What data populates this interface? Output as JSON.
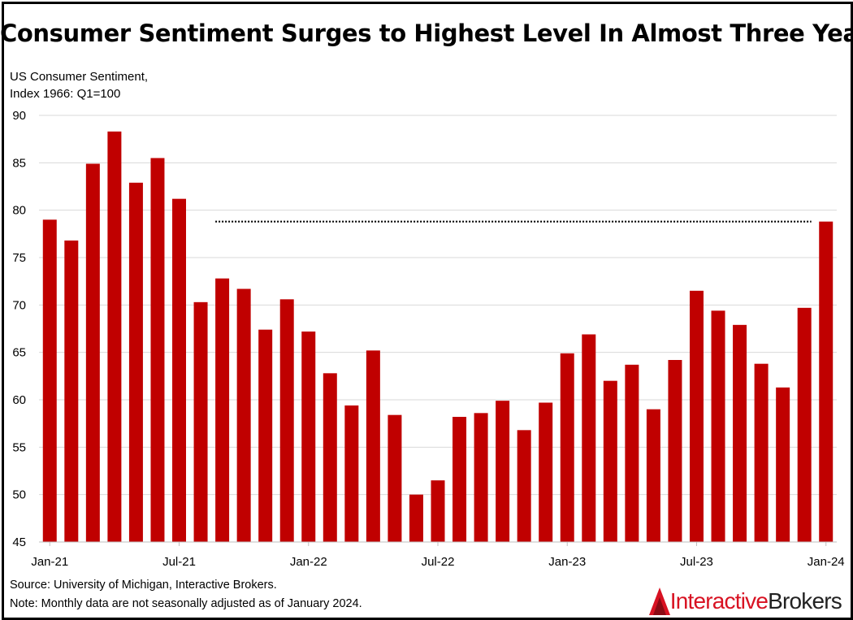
{
  "title": "Consumer Sentiment Surges to Highest Level In Almost Three Years",
  "source": "Source: University of Michigan, Interactive Brokers.",
  "note": "Note: Monthly data are not seasonally adjusted as of January 2024.",
  "logo": {
    "part1": "Interactive",
    "part2": "Brokers"
  },
  "chart_data": {
    "type": "bar",
    "ylabel_lines": [
      "US Consumer Sentiment,",
      "Index 1966: Q1=100"
    ],
    "ylim": [
      45,
      90
    ],
    "yticks": [
      45,
      50,
      55,
      60,
      65,
      70,
      75,
      80,
      85,
      90
    ],
    "grid": true,
    "bar_color": "#c00000",
    "categories": [
      "Jan-21",
      "Feb-21",
      "Mar-21",
      "Apr-21",
      "May-21",
      "Jun-21",
      "Jul-21",
      "Aug-21",
      "Sep-21",
      "Oct-21",
      "Nov-21",
      "Dec-21",
      "Jan-22",
      "Feb-22",
      "Mar-22",
      "Apr-22",
      "May-22",
      "Jun-22",
      "Jul-22",
      "Aug-22",
      "Sep-22",
      "Oct-22",
      "Nov-22",
      "Dec-22",
      "Jan-23",
      "Feb-23",
      "Mar-23",
      "Apr-23",
      "May-23",
      "Jun-23",
      "Jul-23",
      "Aug-23",
      "Sep-23",
      "Oct-23",
      "Nov-23",
      "Dec-23",
      "Jan-24"
    ],
    "values": [
      79.0,
      76.8,
      84.9,
      88.3,
      82.9,
      85.5,
      81.2,
      70.3,
      72.8,
      71.7,
      67.4,
      70.6,
      67.2,
      62.8,
      59.4,
      65.2,
      58.4,
      50.0,
      51.5,
      58.2,
      58.6,
      59.9,
      56.8,
      59.7,
      64.9,
      66.9,
      62.0,
      63.7,
      59.0,
      64.2,
      71.5,
      69.4,
      67.9,
      63.8,
      61.3,
      69.7,
      78.8
    ],
    "x_tick_labels": [
      {
        "index": 0,
        "label": "Jan-21"
      },
      {
        "index": 6,
        "label": "Jul-21"
      },
      {
        "index": 12,
        "label": "Jan-22"
      },
      {
        "index": 18,
        "label": "Jul-22"
      },
      {
        "index": 24,
        "label": "Jan-23"
      },
      {
        "index": 30,
        "label": "Jul-23"
      },
      {
        "index": 36,
        "label": "Jan-24"
      }
    ],
    "reference_line": {
      "value": 78.8,
      "from_index": 8,
      "to_index": 35,
      "style": "dotted"
    }
  }
}
